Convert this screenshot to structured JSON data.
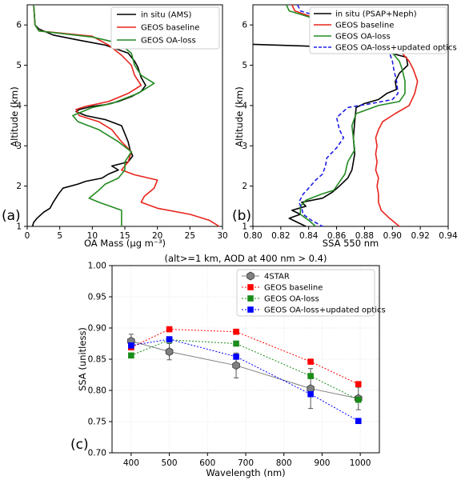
{
  "chart_data": [
    {
      "type": "line",
      "panel_label": "(a)",
      "xlabel": "OA Mass (μg m⁻³)",
      "ylabel": "Altitude (km)",
      "xlim": [
        0,
        30
      ],
      "ylim": [
        1,
        6.5
      ],
      "xticks": [
        0,
        5,
        10,
        15,
        20,
        25,
        30
      ],
      "yticks": [
        1,
        2,
        3,
        4,
        5,
        6
      ],
      "legend_position": "top-right",
      "series": [
        {
          "name": "in situ (AMS)",
          "color": "#000000",
          "points": [
            [
              1.0,
              6.5
            ],
            [
              1.2,
              6.0
            ],
            [
              1.8,
              5.9
            ],
            [
              4,
              5.75
            ],
            [
              8,
              5.62
            ],
            [
              12,
              5.5
            ],
            [
              15.5,
              5.3
            ],
            [
              16.5,
              5.1
            ],
            [
              17,
              4.95
            ],
            [
              17.5,
              4.7
            ],
            [
              18.2,
              4.5
            ],
            [
              17.5,
              4.35
            ],
            [
              16,
              4.22
            ],
            [
              14,
              4.1
            ],
            [
              12,
              4.02
            ],
            [
              10,
              3.98
            ],
            [
              8,
              3.9
            ],
            [
              7.5,
              3.85
            ],
            [
              9,
              3.75
            ],
            [
              12,
              3.65
            ],
            [
              14.5,
              3.5
            ],
            [
              15,
              3.3
            ],
            [
              15.5,
              3.1
            ],
            [
              15.8,
              2.9
            ],
            [
              16.2,
              2.75
            ],
            [
              15.5,
              2.6
            ],
            [
              13,
              2.5
            ],
            [
              14,
              2.4
            ],
            [
              12.5,
              2.3
            ],
            [
              11.5,
              2.2
            ],
            [
              9,
              2.12
            ],
            [
              7.8,
              2.05
            ],
            [
              5.5,
              1.95
            ],
            [
              4.8,
              1.8
            ],
            [
              4,
              1.6
            ],
            [
              3.5,
              1.45
            ],
            [
              2.5,
              1.35
            ],
            [
              1.5,
              1.2
            ],
            [
              1.0,
              1.1
            ],
            [
              0.8,
              1.0
            ]
          ]
        },
        {
          "name": "GEOS baseline",
          "color": "#e8241c",
          "points": [
            [
              1.0,
              6.5
            ],
            [
              1.2,
              6.0
            ],
            [
              1.8,
              5.85
            ],
            [
              10,
              5.72
            ],
            [
              12.5,
              5.5
            ],
            [
              14.5,
              5.25
            ],
            [
              16,
              5.0
            ],
            [
              16.5,
              4.75
            ],
            [
              17.5,
              4.5
            ],
            [
              15.5,
              4.3
            ],
            [
              12.5,
              4.1
            ],
            [
              9,
              3.98
            ],
            [
              7.5,
              3.9
            ],
            [
              8,
              3.75
            ],
            [
              11,
              3.6
            ],
            [
              13,
              3.4
            ],
            [
              14.5,
              3.1
            ],
            [
              16,
              2.85
            ],
            [
              15.5,
              2.6
            ],
            [
              14.5,
              2.4
            ],
            [
              16.5,
              2.28
            ],
            [
              20,
              2.15
            ],
            [
              19.5,
              1.95
            ],
            [
              18,
              1.75
            ],
            [
              17.5,
              1.6
            ],
            [
              20,
              1.45
            ],
            [
              25,
              1.3
            ],
            [
              28,
              1.15
            ],
            [
              29.5,
              1.0
            ]
          ]
        },
        {
          "name": "GEOS OA-loss",
          "color": "#238b22",
          "points": [
            [
              1.0,
              6.5
            ],
            [
              1.2,
              6.0
            ],
            [
              1.8,
              5.85
            ],
            [
              10,
              5.7
            ],
            [
              14,
              5.55
            ],
            [
              16,
              5.3
            ],
            [
              16.5,
              5.0
            ],
            [
              17.5,
              4.75
            ],
            [
              19.5,
              4.55
            ],
            [
              17,
              4.3
            ],
            [
              13,
              4.05
            ],
            [
              10,
              3.95
            ],
            [
              7,
              3.75
            ],
            [
              7.8,
              3.6
            ],
            [
              11,
              3.4
            ],
            [
              14,
              3.1
            ],
            [
              16,
              2.85
            ],
            [
              15,
              2.6
            ],
            [
              15,
              2.4
            ],
            [
              14,
              2.2
            ],
            [
              12,
              2.05
            ],
            [
              11,
              1.9
            ],
            [
              9.5,
              1.7
            ],
            [
              11,
              1.6
            ],
            [
              14.5,
              1.4
            ],
            [
              14.5,
              1.0
            ]
          ]
        }
      ]
    },
    {
      "type": "line",
      "panel_label": "(b)",
      "xlabel": "SSA 550 nm",
      "ylabel": "Altitude (km)",
      "xlim": [
        0.8,
        0.94
      ],
      "ylim": [
        1,
        6.5
      ],
      "xticks": [
        "0.80",
        "0.82",
        "0.84",
        "0.86",
        "0.88",
        "0.90",
        "0.92",
        "0.94"
      ],
      "yticks": [
        1,
        2,
        3,
        4,
        5,
        6
      ],
      "legend_position": "top-right",
      "series": [
        {
          "name": "in situ (PSAP+Neph)",
          "color": "#000000",
          "points": [
            [
              0.8,
              5.52
            ],
            [
              0.86,
              5.45
            ],
            [
              0.893,
              5.35
            ],
            [
              0.91,
              5.2
            ],
            [
              0.911,
              5.0
            ],
            [
              0.905,
              4.8
            ],
            [
              0.902,
              4.6
            ],
            [
              0.903,
              4.4
            ],
            [
              0.896,
              4.3
            ],
            [
              0.89,
              4.15
            ],
            [
              0.88,
              4.05
            ],
            [
              0.874,
              3.95
            ],
            [
              0.873,
              3.6
            ],
            [
              0.872,
              3.2
            ],
            [
              0.873,
              2.8
            ],
            [
              0.872,
              2.6
            ],
            [
              0.871,
              2.4
            ],
            [
              0.868,
              2.2
            ],
            [
              0.862,
              2.0
            ],
            [
              0.857,
              1.85
            ],
            [
              0.85,
              1.7
            ],
            [
              0.835,
              1.6
            ],
            [
              0.838,
              1.5
            ],
            [
              0.828,
              1.4
            ],
            [
              0.834,
              1.3
            ],
            [
              0.826,
              1.2
            ],
            [
              0.832,
              1.1
            ],
            [
              0.838,
              1.0
            ]
          ]
        },
        {
          "name": "GEOS baseline",
          "color": "#e8241c",
          "points": [
            [
              0.828,
              6.5
            ],
            [
              0.83,
              6.35
            ],
            [
              0.842,
              6.2
            ],
            [
              0.86,
              6.05
            ],
            [
              0.874,
              5.9
            ],
            [
              0.886,
              5.7
            ],
            [
              0.898,
              5.5
            ],
            [
              0.907,
              5.3
            ],
            [
              0.912,
              5.1
            ],
            [
              0.915,
              4.9
            ],
            [
              0.918,
              4.6
            ],
            [
              0.916,
              4.3
            ],
            [
              0.912,
              4.0
            ],
            [
              0.902,
              3.8
            ],
            [
              0.893,
              3.6
            ],
            [
              0.89,
              3.4
            ],
            [
              0.888,
              3.2
            ],
            [
              0.889,
              3.0
            ],
            [
              0.888,
              2.8
            ],
            [
              0.889,
              2.6
            ],
            [
              0.888,
              2.4
            ],
            [
              0.89,
              2.2
            ],
            [
              0.889,
              2.0
            ],
            [
              0.89,
              1.8
            ],
            [
              0.89,
              1.6
            ],
            [
              0.892,
              1.4
            ],
            [
              0.898,
              1.2
            ],
            [
              0.905,
              1.0
            ]
          ]
        },
        {
          "name": "GEOS OA-loss",
          "color": "#238b22",
          "points": [
            [
              0.824,
              6.5
            ],
            [
              0.826,
              6.35
            ],
            [
              0.84,
              6.2
            ],
            [
              0.856,
              6.05
            ],
            [
              0.872,
              5.9
            ],
            [
              0.886,
              5.7
            ],
            [
              0.894,
              5.5
            ],
            [
              0.9,
              5.3
            ],
            [
              0.905,
              5.1
            ],
            [
              0.907,
              4.9
            ],
            [
              0.909,
              4.6
            ],
            [
              0.909,
              4.3
            ],
            [
              0.905,
              4.1
            ],
            [
              0.89,
              4.0
            ],
            [
              0.874,
              3.8
            ],
            [
              0.871,
              3.5
            ],
            [
              0.872,
              3.2
            ],
            [
              0.873,
              2.9
            ],
            [
              0.868,
              2.6
            ],
            [
              0.866,
              2.3
            ],
            [
              0.861,
              2.05
            ],
            [
              0.858,
              1.9
            ],
            [
              0.849,
              1.8
            ],
            [
              0.838,
              1.65
            ],
            [
              0.834,
              1.5
            ],
            [
              0.834,
              1.3
            ],
            [
              0.84,
              1.15
            ],
            [
              0.845,
              1.0
            ]
          ]
        },
        {
          "name": "GEOS OA-loss+updated optics",
          "color": "#1f1fe6",
          "dashed": true,
          "points": [
            [
              0.832,
              6.5
            ],
            [
              0.834,
              6.35
            ],
            [
              0.848,
              6.2
            ],
            [
              0.862,
              6.05
            ],
            [
              0.876,
              5.9
            ],
            [
              0.886,
              5.7
            ],
            [
              0.893,
              5.5
            ],
            [
              0.898,
              5.3
            ],
            [
              0.9,
              5.1
            ],
            [
              0.901,
              4.9
            ],
            [
              0.903,
              4.6
            ],
            [
              0.904,
              4.3
            ],
            [
              0.9,
              4.15
            ],
            [
              0.885,
              4.05
            ],
            [
              0.868,
              3.95
            ],
            [
              0.86,
              3.7
            ],
            [
              0.862,
              3.4
            ],
            [
              0.865,
              3.2
            ],
            [
              0.86,
              2.95
            ],
            [
              0.853,
              2.7
            ],
            [
              0.852,
              2.5
            ],
            [
              0.85,
              2.3
            ],
            [
              0.845,
              2.15
            ],
            [
              0.84,
              1.95
            ],
            [
              0.836,
              1.8
            ],
            [
              0.833,
              1.6
            ],
            [
              0.835,
              1.45
            ],
            [
              0.836,
              1.3
            ],
            [
              0.842,
              1.15
            ],
            [
              0.85,
              1.0
            ]
          ]
        }
      ]
    },
    {
      "type": "scatter",
      "panel_label": "(c)",
      "title": "(alt>=1 km, AOD at 400 nm > 0.4)",
      "xlabel": "Wavelength (nm)",
      "ylabel": "SSA (unitless)",
      "xlim": [
        350,
        1050
      ],
      "ylim": [
        0.7,
        1.0
      ],
      "xticks": [
        400,
        500,
        600,
        700,
        800,
        900,
        1000
      ],
      "yticks": [
        "0.70",
        "0.75",
        "0.80",
        "0.85",
        "0.90",
        "0.95",
        "1.00"
      ],
      "grid": true,
      "legend_position": "top-right",
      "x": [
        400,
        500,
        675,
        870,
        995
      ],
      "series": [
        {
          "name": "4STAR",
          "color": "#808080",
          "marker": "hexagon",
          "line": "solid",
          "values": [
            0.879,
            0.862,
            0.84,
            0.803,
            0.787
          ],
          "errors": [
            0.011,
            0.013,
            0.02,
            0.032,
            0.018
          ]
        },
        {
          "name": "GEOS baseline",
          "color": "#ff0000",
          "marker": "square",
          "line": "dotted",
          "values": [
            0.869,
            0.898,
            0.894,
            0.846,
            0.81
          ]
        },
        {
          "name": "GEOS OA-loss",
          "color": "#1a8c1a",
          "marker": "square",
          "line": "dotted",
          "values": [
            0.856,
            0.881,
            0.875,
            0.823,
            0.785
          ]
        },
        {
          "name": "GEOS OA-loss+updated optics",
          "color": "#0000ff",
          "marker": "square",
          "line": "dotted",
          "values": [
            0.872,
            0.882,
            0.854,
            0.794,
            0.751
          ]
        }
      ]
    }
  ]
}
